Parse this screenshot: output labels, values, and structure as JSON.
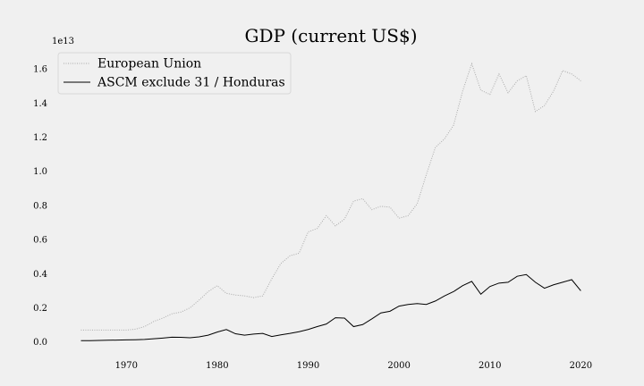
{
  "chart_data": {
    "type": "line",
    "title": "GDP (current US$)",
    "xlabel": "",
    "ylabel": "",
    "y_scale_label": "1e13",
    "xlim": [
      1962,
      2024
    ],
    "ylim": [
      -800000000000.0,
      17000000000000.0
    ],
    "xticks": [
      1970,
      1980,
      1990,
      2000,
      2010,
      2020
    ],
    "yticks": [
      0,
      2000000000000.0,
      4000000000000.0,
      6000000000000.0,
      8000000000000.0,
      10000000000000.0,
      12000000000000.0,
      14000000000000.0,
      16000000000000.0
    ],
    "ytick_labels": [
      "0.0",
      "0.2",
      "0.4",
      "0.6",
      "0.8",
      "1.0",
      "1.2",
      "1.4",
      "1.6"
    ],
    "grid": false,
    "legend_position": "top-left",
    "x": [
      1965,
      1966,
      1967,
      1968,
      1969,
      1970,
      1971,
      1972,
      1973,
      1974,
      1975,
      1976,
      1977,
      1978,
      1979,
      1980,
      1981,
      1982,
      1983,
      1984,
      1985,
      1986,
      1987,
      1988,
      1989,
      1990,
      1991,
      1992,
      1993,
      1994,
      1995,
      1996,
      1997,
      1998,
      1999,
      2000,
      2001,
      2002,
      2003,
      2004,
      2005,
      2006,
      2007,
      2008,
      2009,
      2010,
      2011,
      2012,
      2013,
      2014,
      2015,
      2016,
      2017,
      2018,
      2019,
      2020
    ],
    "series": [
      {
        "name": "European Union",
        "color": "#aaaaaa",
        "style": "dotted",
        "values": [
          700000000000.0,
          700000000000.0,
          700000000000.0,
          700000000000.0,
          700000000000.0,
          700000000000.0,
          750000000000.0,
          900000000000.0,
          1200000000000.0,
          1400000000000.0,
          1650000000000.0,
          1750000000000.0,
          2000000000000.0,
          2450000000000.0,
          2950000000000.0,
          3300000000000.0,
          2850000000000.0,
          2750000000000.0,
          2700000000000.0,
          2600000000000.0,
          2700000000000.0,
          3700000000000.0,
          4600000000000.0,
          5050000000000.0,
          5200000000000.0,
          6450000000000.0,
          6650000000000.0,
          7400000000000.0,
          6800000000000.0,
          7200000000000.0,
          8250000000000.0,
          8400000000000.0,
          7750000000000.0,
          7950000000000.0,
          7900000000000.0,
          7250000000000.0,
          7400000000000.0,
          8100000000000.0,
          9800000000000.0,
          11400000000000.0,
          11900000000000.0,
          12700000000000.0,
          14700000000000.0,
          16300000000000.0,
          14750000000000.0,
          14500000000000.0,
          15700000000000.0,
          14600000000000.0,
          15300000000000.0,
          15600000000000.0,
          13500000000000.0,
          13850000000000.0,
          14700000000000.0,
          15900000000000.0,
          15700000000000.0,
          15300000000000.0
        ]
      },
      {
        "name": "ASCM exclude 31 / Honduras",
        "color": "#000000",
        "style": "solid",
        "values": [
          80000000000.0,
          80000000000.0,
          90000000000.0,
          100000000000.0,
          110000000000.0,
          120000000000.0,
          130000000000.0,
          150000000000.0,
          190000000000.0,
          230000000000.0,
          280000000000.0,
          270000000000.0,
          250000000000.0,
          300000000000.0,
          400000000000.0,
          580000000000.0,
          730000000000.0,
          480000000000.0,
          400000000000.0,
          460000000000.0,
          500000000000.0,
          320000000000.0,
          420000000000.0,
          500000000000.0,
          600000000000.0,
          730000000000.0,
          900000000000.0,
          1050000000000.0,
          1420000000000.0,
          1400000000000.0,
          900000000000.0,
          1020000000000.0,
          1350000000000.0,
          1700000000000.0,
          1800000000000.0,
          2100000000000.0,
          2200000000000.0,
          2250000000000.0,
          2200000000000.0,
          2400000000000.0,
          2700000000000.0,
          2950000000000.0,
          3300000000000.0,
          3550000000000.0,
          2800000000000.0,
          3250000000000.0,
          3450000000000.0,
          3500000000000.0,
          3850000000000.0,
          3950000000000.0,
          3500000000000.0,
          3150000000000.0,
          3350000000000.0,
          3500000000000.0,
          3650000000000.0,
          3000000000000.0
        ]
      }
    ]
  }
}
